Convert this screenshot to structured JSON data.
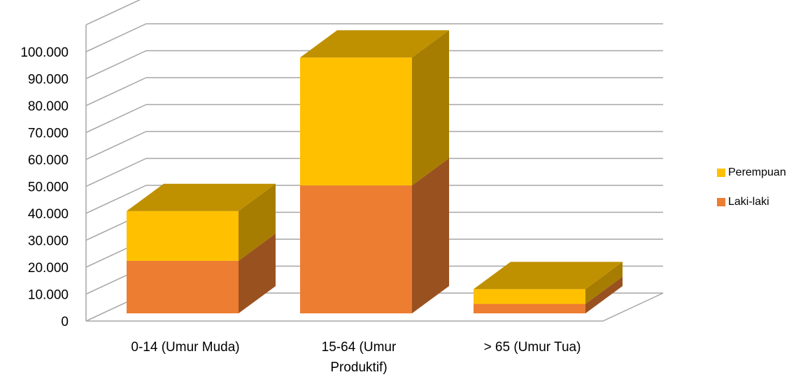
{
  "chart_data": {
    "type": "bar",
    "stacked": true,
    "three_d": true,
    "categories": [
      [
        "0-14 (Umur Muda)"
      ],
      [
        "15-64 (Umur",
        "Produktif)"
      ],
      [
        "> 65 (Umur Tua)"
      ]
    ],
    "series": [
      {
        "name": "Laki-laki",
        "values": [
          19500,
          47500,
          3500
        ],
        "color": "#ED7D31"
      },
      {
        "name": "Perempuan",
        "values": [
          18500,
          47500,
          5500
        ],
        "color": "#FFC000"
      }
    ],
    "yticks": [
      "0",
      "10.000",
      "20.000",
      "30.000",
      "40.000",
      "50.000",
      "60.000",
      "70.000",
      "80.000",
      "90.000",
      "100.000"
    ],
    "ylim": [
      0,
      100000
    ],
    "grid": true,
    "legend_position": "right"
  },
  "legend": [
    {
      "label": "Perempuan",
      "color": "#FFC000"
    },
    {
      "label": "Laki-laki",
      "color": "#ED7D31"
    }
  ]
}
